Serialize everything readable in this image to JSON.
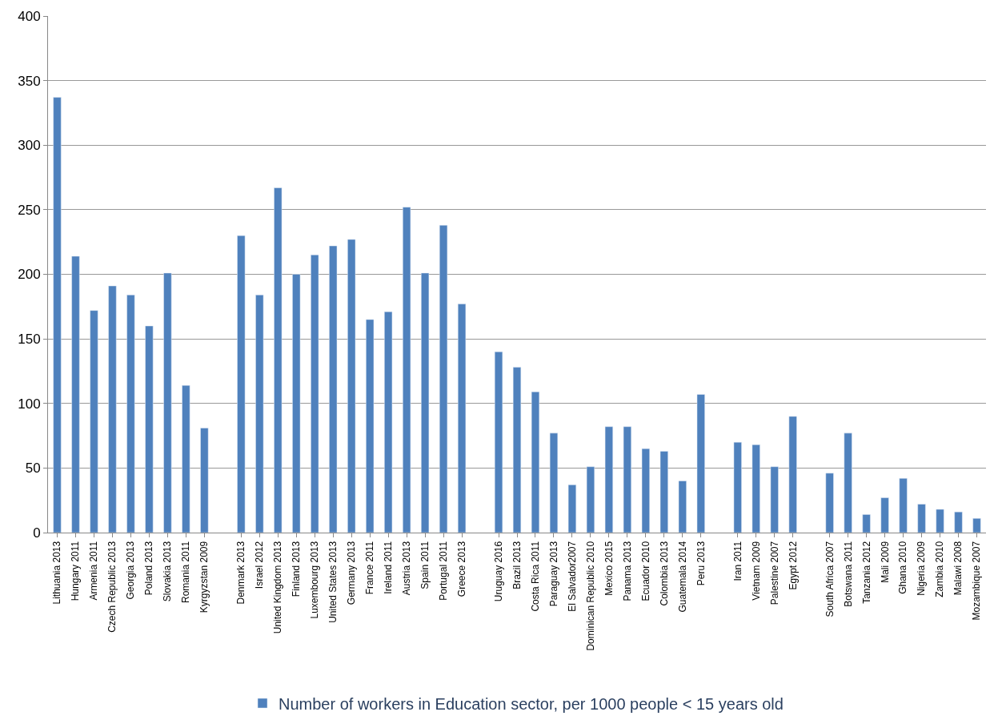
{
  "chart_data": {
    "type": "bar",
    "categories": [
      "Lithuania 2013",
      "Hungary 2011",
      "Armenia 2011",
      "Czech Republic 2013",
      "Georgia 2013",
      "Poland 2013",
      "Slovakia 2013",
      "Romania 2011",
      "Kyrgyzstan 2009",
      null,
      "Denmark 2013",
      "Israel 2012",
      "United Kingdom 2013",
      "Finland 2013",
      "Luxembourg 2013",
      "United States 2013",
      "Germany 2013",
      "France 2011",
      "Ireland 2011",
      "Austria 2013",
      "Spain 2011",
      "Portugal 2011",
      "Greece 2013",
      null,
      "Uruguay 2016",
      "Brazil 2013",
      "Costa Rica 2011",
      "Paraguay 2013",
      "El Salvador2007",
      "Dominican Republic 2010",
      "Mexico 2015",
      "Panama 2013",
      "Ecuador 2010",
      "Colombia 2013",
      "Guatemala 2014",
      "Peru 2013",
      null,
      "Iran 2011",
      "Vietnam 2009",
      "Palestine 2007",
      "Egypt 2012",
      null,
      "South Africa 2007",
      "Botswana 2011",
      "Tanzania 2012",
      "Mali 2009",
      "Ghana 2010",
      "Nigeria 2009",
      "Zambia 2010",
      "Malawi 2008",
      "Mozambique 2007"
    ],
    "series": [
      {
        "name": "Number of workers in Education sector, per 1000 people < 15 years old",
        "color": "#4f81bd",
        "values": [
          337,
          214,
          172,
          191,
          184,
          160,
          201,
          114,
          81,
          null,
          230,
          184,
          267,
          200,
          215,
          222,
          227,
          165,
          171,
          252,
          201,
          238,
          177,
          null,
          140,
          128,
          109,
          77,
          37,
          51,
          82,
          82,
          65,
          63,
          40,
          107,
          null,
          70,
          68,
          51,
          90,
          null,
          46,
          77,
          14,
          27,
          42,
          22,
          18,
          16,
          11
        ]
      }
    ],
    "ylim": [
      0,
      400
    ],
    "yticks": [
      0,
      50,
      100,
      150,
      200,
      250,
      300,
      350,
      400
    ],
    "grid": "y",
    "legend": "bottom"
  }
}
